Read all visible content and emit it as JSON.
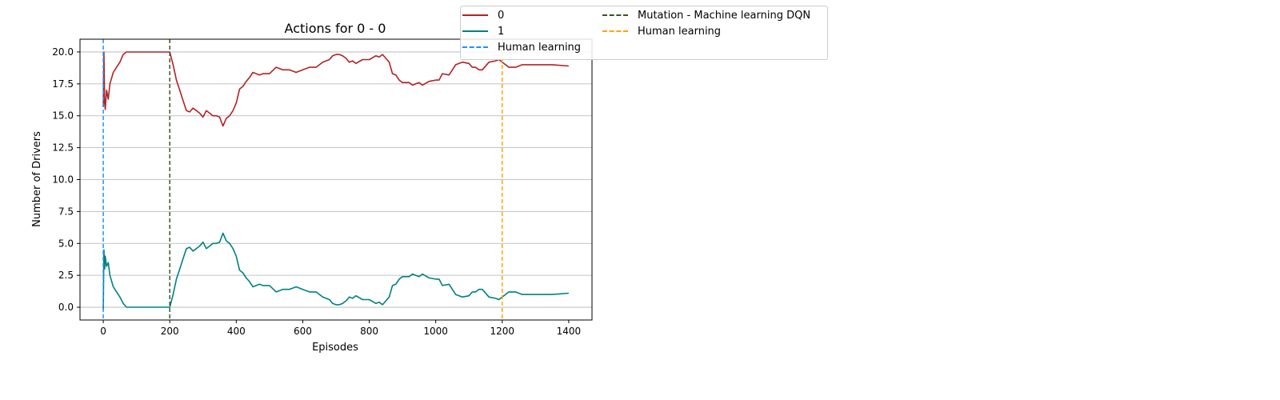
{
  "chart_data": {
    "type": "line",
    "title": "Actions for 0 - 0",
    "xlabel": "Episodes",
    "ylabel": "Number of Drivers",
    "xlim": [
      -70,
      1470
    ],
    "ylim": [
      -1.0,
      21.0
    ],
    "xticks": [
      "0",
      "200",
      "400",
      "600",
      "800",
      "1000",
      "1200",
      "1400"
    ],
    "xtick_values": [
      0,
      200,
      400,
      600,
      800,
      1000,
      1200,
      1400
    ],
    "yticks": [
      "0.0",
      "2.5",
      "5.0",
      "7.5",
      "10.0",
      "12.5",
      "15.0",
      "17.5",
      "20.0"
    ],
    "ytick_values": [
      0,
      2.5,
      5,
      7.5,
      10,
      12.5,
      15,
      17.5,
      20
    ],
    "grid": "horizontal",
    "legend_position": "top-right, outside axes",
    "series": [
      {
        "name": "0",
        "color": "#b22222",
        "x": [
          0,
          2,
          4,
          6,
          10,
          15,
          20,
          30,
          40,
          50,
          60,
          70,
          80,
          100,
          120,
          140,
          160,
          180,
          200,
          210,
          220,
          230,
          240,
          250,
          260,
          270,
          280,
          290,
          300,
          310,
          320,
          330,
          340,
          350,
          360,
          370,
          380,
          390,
          400,
          410,
          420,
          430,
          440,
          450,
          460,
          470,
          480,
          500,
          520,
          540,
          560,
          580,
          600,
          620,
          640,
          660,
          680,
          690,
          700,
          710,
          720,
          730,
          740,
          750,
          760,
          780,
          800,
          820,
          830,
          840,
          850,
          860,
          870,
          880,
          890,
          900,
          920,
          930,
          940,
          950,
          960,
          980,
          1000,
          1010,
          1020,
          1040,
          1060,
          1080,
          1100,
          1110,
          1120,
          1130,
          1140,
          1160,
          1180,
          1190,
          1200,
          1210,
          1220,
          1240,
          1260,
          1300,
          1350,
          1400
        ],
        "y": [
          15.7,
          20.0,
          16.0,
          15.5,
          17.0,
          16.3,
          17.5,
          18.4,
          18.8,
          19.2,
          19.8,
          20.0,
          20.0,
          20.0,
          20.0,
          20.0,
          20.0,
          20.0,
          20.0,
          19.0,
          17.8,
          17.0,
          16.2,
          15.4,
          15.3,
          15.6,
          15.4,
          15.2,
          14.9,
          15.4,
          15.2,
          15.0,
          15.0,
          14.9,
          14.2,
          14.8,
          15.0,
          15.4,
          16.0,
          17.1,
          17.3,
          17.7,
          18.0,
          18.4,
          18.3,
          18.2,
          18.3,
          18.3,
          18.8,
          18.6,
          18.6,
          18.4,
          18.6,
          18.8,
          18.8,
          19.2,
          19.4,
          19.7,
          19.8,
          19.8,
          19.7,
          19.5,
          19.2,
          19.3,
          19.1,
          19.4,
          19.4,
          19.7,
          19.6,
          19.8,
          19.5,
          19.2,
          18.3,
          18.2,
          17.8,
          17.6,
          17.6,
          17.4,
          17.5,
          17.6,
          17.4,
          17.7,
          17.8,
          17.8,
          18.3,
          18.2,
          19.0,
          19.2,
          19.1,
          18.8,
          18.8,
          18.6,
          18.6,
          19.2,
          19.3,
          19.4,
          19.2,
          19.0,
          18.8,
          18.8,
          19.0,
          19.0,
          19.0,
          18.9
        ]
      },
      {
        "name": "1",
        "color": "#008080",
        "x": [
          0,
          2,
          4,
          6,
          10,
          15,
          20,
          30,
          40,
          50,
          60,
          70,
          80,
          100,
          120,
          140,
          160,
          180,
          200,
          210,
          220,
          230,
          240,
          250,
          260,
          270,
          280,
          290,
          300,
          310,
          320,
          330,
          340,
          350,
          360,
          370,
          380,
          390,
          400,
          410,
          420,
          430,
          440,
          450,
          460,
          470,
          480,
          500,
          520,
          540,
          560,
          580,
          600,
          620,
          640,
          660,
          680,
          690,
          700,
          710,
          720,
          730,
          740,
          750,
          760,
          780,
          800,
          820,
          830,
          840,
          850,
          860,
          870,
          880,
          890,
          900,
          920,
          930,
          940,
          950,
          960,
          980,
          1000,
          1010,
          1020,
          1040,
          1060,
          1080,
          1100,
          1110,
          1120,
          1130,
          1140,
          1160,
          1180,
          1190,
          1200,
          1210,
          1220,
          1240,
          1260,
          1300,
          1350,
          1400
        ],
        "y": [
          -0.2,
          4.5,
          3.0,
          4.0,
          3.2,
          3.5,
          2.5,
          1.6,
          1.2,
          0.8,
          0.3,
          0.0,
          0.0,
          0.0,
          0.0,
          0.0,
          0.0,
          0.0,
          0.0,
          1.0,
          2.2,
          3.0,
          3.8,
          4.6,
          4.7,
          4.4,
          4.6,
          4.8,
          5.1,
          4.6,
          4.8,
          5.0,
          5.0,
          5.1,
          5.8,
          5.2,
          5.0,
          4.6,
          4.0,
          2.9,
          2.7,
          2.3,
          2.0,
          1.6,
          1.7,
          1.8,
          1.7,
          1.7,
          1.2,
          1.4,
          1.4,
          1.6,
          1.4,
          1.2,
          1.2,
          0.8,
          0.6,
          0.3,
          0.2,
          0.2,
          0.3,
          0.5,
          0.8,
          0.7,
          0.9,
          0.6,
          0.6,
          0.3,
          0.4,
          0.2,
          0.5,
          0.8,
          1.7,
          1.8,
          2.2,
          2.4,
          2.4,
          2.6,
          2.5,
          2.4,
          2.6,
          2.3,
          2.2,
          2.2,
          1.7,
          1.8,
          1.0,
          0.8,
          0.9,
          1.2,
          1.2,
          1.4,
          1.4,
          0.8,
          0.7,
          0.6,
          0.8,
          1.0,
          1.2,
          1.2,
          1.0,
          1.0,
          1.0,
          1.1
        ]
      }
    ],
    "vlines": [
      {
        "x": 0,
        "label": "Human learning",
        "color": "#1e90ff"
      },
      {
        "x": 200,
        "label": "Mutation - Machine learning DQN",
        "color": "#3b5323"
      },
      {
        "x": 1200,
        "label": "Human learning",
        "color": "#ffa500"
      }
    ],
    "legend": [
      {
        "label": "0",
        "color": "#b22222",
        "style": "solid"
      },
      {
        "label": "1",
        "color": "#008080",
        "style": "solid"
      },
      {
        "label": "Human learning",
        "color": "#1e90ff",
        "style": "dashed"
      },
      {
        "label": "Mutation - Machine learning DQN",
        "color": "#3b5323",
        "style": "dashed"
      },
      {
        "label": "Human learning",
        "color": "#ffa500",
        "style": "dashed"
      }
    ]
  }
}
